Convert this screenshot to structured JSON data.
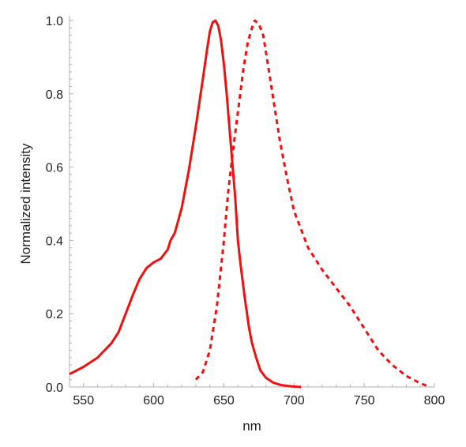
{
  "chart_data": {
    "type": "line",
    "title": "",
    "xlabel": "nm",
    "ylabel": "Normalized   intensity",
    "xlim": [
      540,
      800
    ],
    "ylim": [
      0,
      1
    ],
    "x_ticks": [
      550,
      600,
      650,
      700,
      750,
      800
    ],
    "x_tick_labels": [
      "550",
      "600",
      "650",
      "700",
      "750",
      "800"
    ],
    "y_ticks": [
      0,
      0.2,
      0.4,
      0.6,
      0.8,
      1.0
    ],
    "y_tick_labels": [
      "0.0",
      "0.2",
      "0.4",
      "0.6",
      "0.8",
      "1.0"
    ],
    "grid": false,
    "series": [
      {
        "style": "solid",
        "color": "#ee1111",
        "x": [
          540,
          550,
          560,
          570,
          575,
          580,
          585,
          590,
          595,
          600,
          605,
          610,
          612,
          615,
          620,
          625,
          630,
          635,
          638,
          640,
          642,
          644,
          646,
          648,
          650,
          652,
          655,
          658,
          660,
          662,
          665,
          668,
          670,
          673,
          676,
          680,
          685,
          690,
          695,
          700,
          705
        ],
        "y": [
          0.035,
          0.055,
          0.08,
          0.12,
          0.15,
          0.2,
          0.25,
          0.295,
          0.325,
          0.34,
          0.35,
          0.375,
          0.4,
          0.42,
          0.49,
          0.59,
          0.71,
          0.84,
          0.92,
          0.97,
          0.995,
          1.0,
          0.985,
          0.945,
          0.88,
          0.8,
          0.66,
          0.52,
          0.4,
          0.33,
          0.24,
          0.16,
          0.12,
          0.08,
          0.045,
          0.025,
          0.012,
          0.006,
          0.003,
          0.001,
          0.0
        ]
      },
      {
        "style": "dashed",
        "color": "#ee1111",
        "x": [
          630,
          635,
          640,
          645,
          650,
          653,
          656,
          660,
          664,
          667,
          670,
          672,
          675,
          678,
          681,
          685,
          690,
          695,
          700,
          710,
          720,
          730,
          740,
          750,
          760,
          770,
          780,
          790,
          797
        ],
        "y": [
          0.02,
          0.04,
          0.1,
          0.22,
          0.4,
          0.53,
          0.63,
          0.75,
          0.87,
          0.94,
          0.98,
          1.0,
          0.99,
          0.96,
          0.89,
          0.79,
          0.67,
          0.57,
          0.48,
          0.38,
          0.32,
          0.27,
          0.22,
          0.16,
          0.1,
          0.06,
          0.03,
          0.01,
          0.0
        ]
      }
    ]
  }
}
